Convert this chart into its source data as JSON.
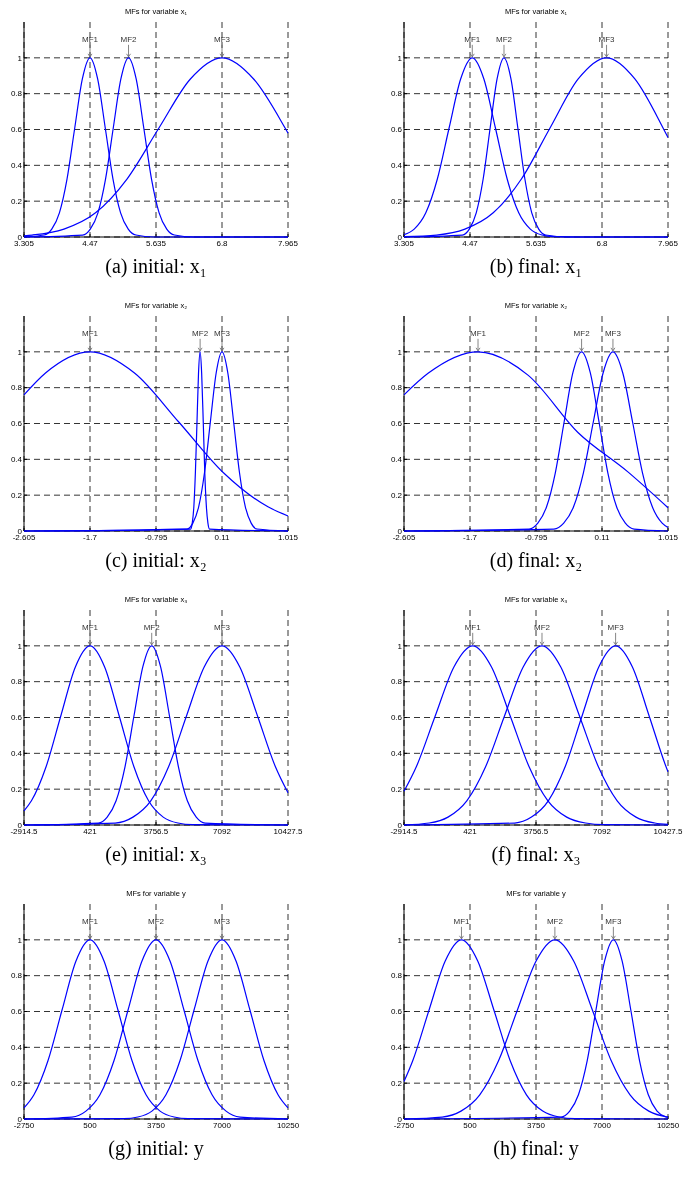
{
  "chart_data": [
    {
      "type": "line",
      "title": "MFs for variable x₁",
      "annotations": [
        "(a) initial: x₁"
      ],
      "xlim": [
        3.305,
        7.965
      ],
      "xticks": [
        3.305,
        4.47,
        5.635,
        6.8,
        7.965
      ],
      "ylim": [
        0,
        1.2
      ],
      "yticks": [
        0,
        0.2,
        0.4,
        0.6,
        0.8,
        1
      ],
      "grid": true,
      "line_style": "solid",
      "marker": "none",
      "series": [
        {
          "name": "MF1",
          "color": "#0000ff",
          "x": [
            3.305,
            3.66,
            3.795,
            3.93,
            4.065,
            4.2,
            4.335,
            4.47,
            4.605,
            4.74,
            4.875,
            5.01,
            5.145,
            5.28,
            5.6,
            7.965
          ],
          "values": [
            0,
            0.011,
            0.044,
            0.135,
            0.325,
            0.607,
            0.882,
            1,
            0.882,
            0.607,
            0.325,
            0.135,
            0.044,
            0.011,
            0,
            0
          ]
        },
        {
          "name": "MF2",
          "color": "#0000ff",
          "x": [
            3.305,
            4.34,
            4.475,
            4.61,
            4.745,
            4.88,
            5.015,
            5.15,
            5.285,
            5.42,
            5.555,
            5.69,
            5.825,
            5.96,
            6.3,
            7.965
          ],
          "values": [
            0,
            0.011,
            0.044,
            0.135,
            0.325,
            0.607,
            0.882,
            1,
            0.882,
            0.607,
            0.325,
            0.135,
            0.044,
            0.011,
            0,
            0
          ]
        },
        {
          "name": "MF3",
          "color": "#0000ff",
          "x": [
            3.305,
            3.452,
            4.01,
            4.568,
            5.126,
            5.684,
            6.242,
            6.8,
            7.358,
            7.916,
            7.965
          ],
          "values": [
            0.007,
            0.011,
            0.044,
            0.135,
            0.325,
            0.607,
            0.882,
            1,
            0.882,
            0.607,
            0.58
          ]
        }
      ]
    },
    {
      "type": "line",
      "title": "MFs for variable x₁",
      "annotations": [
        "(b) final: x₁"
      ],
      "xlim": [
        3.305,
        7.965
      ],
      "xticks": [
        3.305,
        4.47,
        5.635,
        6.8,
        7.965
      ],
      "ylim": [
        0,
        1.2
      ],
      "yticks": [
        0,
        0.2,
        0.4,
        0.6,
        0.8,
        1
      ],
      "grid": true,
      "line_style": "solid",
      "marker": "none",
      "series": [
        {
          "name": "MF1",
          "color": "#0000ff",
          "x": [
            3.305,
            3.485,
            3.69,
            3.895,
            4.1,
            4.305,
            4.51,
            4.715,
            4.92,
            5.125,
            5.33,
            5.535,
            5.74,
            5.945,
            6.4,
            7.965
          ],
          "values": [
            0.013,
            0.044,
            0.135,
            0.325,
            0.607,
            0.882,
            1,
            0.882,
            0.607,
            0.325,
            0.135,
            0.044,
            0.011,
            0.002,
            0,
            0
          ]
        },
        {
          "name": "MF2",
          "color": "#0000ff",
          "x": [
            3.305,
            4.335,
            4.458,
            4.58,
            4.703,
            4.825,
            4.948,
            5.07,
            5.193,
            5.315,
            5.438,
            5.56,
            5.683,
            5.805,
            6.2,
            7.965
          ],
          "values": [
            0,
            0.011,
            0.044,
            0.135,
            0.325,
            0.607,
            0.882,
            1,
            0.882,
            0.607,
            0.325,
            0.135,
            0.044,
            0.011,
            0,
            0
          ]
        },
        {
          "name": "MF3",
          "color": "#0000ff",
          "x": [
            3.305,
            3.88,
            4.38,
            4.88,
            5.38,
            5.88,
            6.38,
            6.88,
            7.38,
            7.88,
            7.965
          ],
          "values": [
            0.002,
            0.011,
            0.044,
            0.135,
            0.325,
            0.607,
            0.882,
            1,
            0.882,
            0.607,
            0.555
          ]
        }
      ]
    },
    {
      "type": "line",
      "title": "MFs for variable x₂",
      "annotations": [
        "(c) initial: x₂"
      ],
      "xlim": [
        -2.605,
        1.015
      ],
      "xticks": [
        -2.605,
        -1.7,
        -0.795,
        0.11,
        1.015
      ],
      "ylim": [
        0,
        1.2
      ],
      "yticks": [
        0,
        0.2,
        0.4,
        0.6,
        0.8,
        1
      ],
      "grid": true,
      "line_style": "solid",
      "marker": "none",
      "series": [
        {
          "name": "MF1",
          "color": "#0000ff",
          "x": [
            -2.605,
            -2.31,
            -1.7,
            -1.09,
            -0.48,
            0.13,
            0.74,
            1.015
          ],
          "values": [
            0.76,
            0.882,
            1,
            0.882,
            0.607,
            0.325,
            0.135,
            0.084
          ]
        },
        {
          "name": "MF2",
          "color": "#0000ff",
          "x": [
            -2.605,
            -0.319,
            -0.298,
            -0.276,
            -0.255,
            -0.233,
            -0.212,
            -0.19,
            -0.169,
            -0.147,
            -0.126,
            -0.104,
            -0.083,
            -0.061,
            1.015
          ],
          "values": [
            0,
            0.011,
            0.044,
            0.135,
            0.325,
            0.607,
            0.882,
            1,
            0.882,
            0.607,
            0.325,
            0.135,
            0.044,
            0.011,
            0
          ]
        },
        {
          "name": "MF3",
          "color": "#0000ff",
          "x": [
            -2.605,
            -0.37,
            -0.29,
            -0.21,
            -0.13,
            -0.05,
            0.03,
            0.11,
            0.19,
            0.27,
            0.35,
            0.43,
            0.51,
            0.59,
            1.015
          ],
          "values": [
            0,
            0.011,
            0.044,
            0.135,
            0.325,
            0.607,
            0.882,
            1,
            0.882,
            0.607,
            0.325,
            0.135,
            0.044,
            0.011,
            0
          ]
        }
      ]
    },
    {
      "type": "line",
      "title": "MFs for variable x₂",
      "annotations": [
        "(d) final: x₂"
      ],
      "xlim": [
        -2.605,
        1.015
      ],
      "xticks": [
        -2.605,
        -1.7,
        -0.795,
        0.11,
        1.015
      ],
      "ylim": [
        0,
        1.2
      ],
      "yticks": [
        0,
        0.2,
        0.4,
        0.6,
        0.8,
        1
      ],
      "grid": true,
      "line_style": "solid",
      "marker": "none",
      "series": [
        {
          "name": "MF1",
          "color": "#0000ff",
          "x": [
            -2.605,
            -2.275,
            -1.59,
            -0.905,
            -0.22,
            0.465,
            1.015
          ],
          "values": [
            0.76,
            0.88,
            1,
            0.87,
            0.55,
            0.33,
            0.13
          ]
        },
        {
          "name": "MF2",
          "color": "#0000ff",
          "x": [
            -2.605,
            -0.89,
            -0.77,
            -0.65,
            -0.53,
            -0.41,
            -0.29,
            -0.17,
            -0.05,
            0.07,
            0.19,
            0.31,
            0.43,
            0.55,
            1.015
          ],
          "values": [
            0,
            0.011,
            0.044,
            0.135,
            0.325,
            0.607,
            0.882,
            1,
            0.882,
            0.607,
            0.325,
            0.135,
            0.044,
            0.011,
            0
          ]
        },
        {
          "name": "MF3",
          "color": "#0000ff",
          "x": [
            -2.605,
            -0.55,
            -0.415,
            -0.28,
            -0.145,
            -0.01,
            0.125,
            0.26,
            0.395,
            0.53,
            0.665,
            0.8,
            0.935,
            1.015
          ],
          "values": [
            0,
            0.011,
            0.044,
            0.135,
            0.325,
            0.607,
            0.882,
            1,
            0.882,
            0.607,
            0.325,
            0.135,
            0.044,
            0.02
          ]
        }
      ]
    },
    {
      "type": "line",
      "title": "MFs for variable x₃",
      "annotations": [
        "(e) initial: x₃"
      ],
      "xlim": [
        -2914.5,
        10427.5
      ],
      "xticks": [
        -2914.5,
        421,
        3756.5,
        7092,
        10427.5
      ],
      "ylim": [
        0,
        1.2
      ],
      "yticks": [
        0,
        0.2,
        0.4,
        0.6,
        0.8,
        1
      ],
      "grid": true,
      "line_style": "solid",
      "marker": "none",
      "series": [
        {
          "name": "MF1",
          "color": "#0000ff",
          "x": [
            -2914.5,
            -2539,
            -1799,
            -1059,
            -319,
            421,
            1161,
            1901,
            2641,
            3381,
            4121,
            4861,
            5601,
            10427.5
          ],
          "values": [
            0.079,
            0.135,
            0.325,
            0.607,
            0.882,
            1,
            0.882,
            0.607,
            0.325,
            0.135,
            0.044,
            0.011,
            0.002,
            0
          ]
        },
        {
          "name": "MF2",
          "color": "#0000ff",
          "x": [
            -2914.5,
            840,
            1290,
            1740,
            2190,
            2640,
            3090,
            3540,
            3990,
            4440,
            4890,
            5340,
            5790,
            6240,
            10427.5
          ],
          "values": [
            0,
            0.011,
            0.044,
            0.135,
            0.325,
            0.607,
            0.882,
            1,
            0.882,
            0.607,
            0.325,
            0.135,
            0.044,
            0.011,
            0
          ]
        },
        {
          "name": "MF3",
          "color": "#0000ff",
          "x": [
            -2914.5,
            1692,
            2592,
            3492,
            4392,
            5292,
            6192,
            7092,
            7992,
            8892,
            9792,
            10427.5
          ],
          "values": [
            0,
            0.011,
            0.044,
            0.135,
            0.325,
            0.607,
            0.882,
            1,
            0.882,
            0.607,
            0.325,
            0.18
          ]
        }
      ]
    },
    {
      "type": "line",
      "title": "MFs for variable x₃",
      "annotations": [
        "(f) final: x₃"
      ],
      "xlim": [
        -2914.5,
        10427.5
      ],
      "xticks": [
        -2914.5,
        421,
        3756.5,
        7092,
        10427.5
      ],
      "ylim": [
        0,
        1.2
      ],
      "yticks": [
        0,
        0.2,
        0.4,
        0.6,
        0.8,
        1
      ],
      "grid": true,
      "line_style": "solid",
      "marker": "none",
      "series": [
        {
          "name": "MF1",
          "color": "#0000ff",
          "x": [
            -2914.5,
            -2292,
            -1342,
            -392,
            558,
            1508,
            2458,
            3408,
            4358,
            5308,
            6258,
            7208,
            10427.5
          ],
          "values": [
            0.188,
            0.325,
            0.607,
            0.882,
            1,
            0.882,
            0.607,
            0.325,
            0.135,
            0.044,
            0.011,
            0.002,
            0
          ]
        },
        {
          "name": "MF2",
          "color": "#0000ff",
          "x": [
            -2914.5,
            -1641,
            -691,
            259,
            1209,
            2159,
            3109,
            4059,
            5009,
            5959,
            6909,
            7859,
            8809,
            9759,
            10427.5
          ],
          "values": [
            0,
            0.011,
            0.044,
            0.135,
            0.325,
            0.607,
            0.882,
            1,
            0.882,
            0.607,
            0.325,
            0.135,
            0.044,
            0.011,
            0.004
          ]
        },
        {
          "name": "MF3",
          "color": "#0000ff",
          "x": [
            -2914.5,
            2679,
            3529,
            4379,
            5229,
            6079,
            6929,
            7779,
            8629,
            9479,
            10329,
            10427.5
          ],
          "values": [
            0,
            0.011,
            0.044,
            0.135,
            0.325,
            0.607,
            0.882,
            1,
            0.882,
            0.607,
            0.325,
            0.297
          ]
        }
      ]
    },
    {
      "type": "line",
      "title": "MFs for variable y",
      "annotations": [
        "(g) initial: y"
      ],
      "xlim": [
        -2750,
        10250
      ],
      "xticks": [
        -2750,
        500,
        3750,
        7000,
        10250
      ],
      "ylim": [
        0,
        1.2
      ],
      "yticks": [
        0,
        0.2,
        0.4,
        0.6,
        0.8,
        1
      ],
      "grid": true,
      "line_style": "solid",
      "marker": "none",
      "series": [
        {
          "name": "MF1",
          "color": "#0000ff",
          "x": [
            -2750,
            -2260,
            -1570,
            -880,
            -190,
            500,
            1190,
            1880,
            2570,
            3260,
            3950,
            4640,
            5330,
            10250
          ],
          "values": [
            0.062,
            0.135,
            0.325,
            0.607,
            0.882,
            1,
            0.882,
            0.607,
            0.325,
            0.135,
            0.044,
            0.011,
            0.002,
            0
          ]
        },
        {
          "name": "MF2",
          "color": "#0000ff",
          "x": [
            -2750,
            -390,
            300,
            990,
            1680,
            2370,
            3060,
            3750,
            4440,
            5130,
            5820,
            6510,
            7200,
            7890,
            10250
          ],
          "values": [
            0,
            0.011,
            0.044,
            0.135,
            0.325,
            0.607,
            0.882,
            1,
            0.882,
            0.607,
            0.325,
            0.135,
            0.044,
            0.011,
            0
          ]
        },
        {
          "name": "MF3",
          "color": "#0000ff",
          "x": [
            -2750,
            2170,
            2860,
            3550,
            4240,
            4930,
            5620,
            6310,
            7000,
            7690,
            8380,
            9070,
            9760,
            10250
          ],
          "values": [
            0,
            0.002,
            0.011,
            0.044,
            0.135,
            0.325,
            0.607,
            0.882,
            1,
            0.882,
            0.607,
            0.325,
            0.135,
            0.062
          ]
        }
      ]
    },
    {
      "type": "line",
      "title": "MFs for variable y",
      "annotations": [
        "(h) final: y"
      ],
      "xlim": [
        -2750,
        10250
      ],
      "xticks": [
        -2750,
        500,
        3750,
        7000,
        10250
      ],
      "ylim": [
        0,
        1.2
      ],
      "yticks": [
        0,
        0.2,
        0.4,
        0.6,
        0.8,
        1
      ],
      "grid": true,
      "line_style": "solid",
      "marker": "none",
      "series": [
        {
          "name": "MF1",
          "color": "#0000ff",
          "x": [
            -2750,
            -2320,
            -1520,
            -720,
            80,
            880,
            1680,
            2480,
            3280,
            4080,
            4880,
            5680,
            10250
          ],
          "values": [
            0.209,
            0.325,
            0.607,
            0.882,
            1,
            0.882,
            0.607,
            0.325,
            0.135,
            0.044,
            0.011,
            0.002,
            0
          ]
        },
        {
          "name": "MF2",
          "color": "#0000ff",
          "x": [
            -2750,
            -870,
            55,
            980,
            1905,
            2830,
            3755,
            4680,
            5605,
            6530,
            7455,
            8380,
            9305,
            10250
          ],
          "values": [
            0,
            0.011,
            0.044,
            0.135,
            0.325,
            0.607,
            0.882,
            1,
            0.882,
            0.607,
            0.325,
            0.135,
            0.044,
            0.011
          ]
        },
        {
          "name": "MF3",
          "color": "#0000ff",
          "x": [
            -2750,
            4980,
            5410,
            5840,
            6270,
            6700,
            7130,
            7560,
            7990,
            8420,
            8850,
            9280,
            9710,
            10140,
            10250
          ],
          "values": [
            0,
            0.011,
            0.044,
            0.135,
            0.325,
            0.607,
            0.882,
            1,
            0.882,
            0.607,
            0.325,
            0.135,
            0.044,
            0.011,
            0.007
          ]
        }
      ]
    }
  ]
}
